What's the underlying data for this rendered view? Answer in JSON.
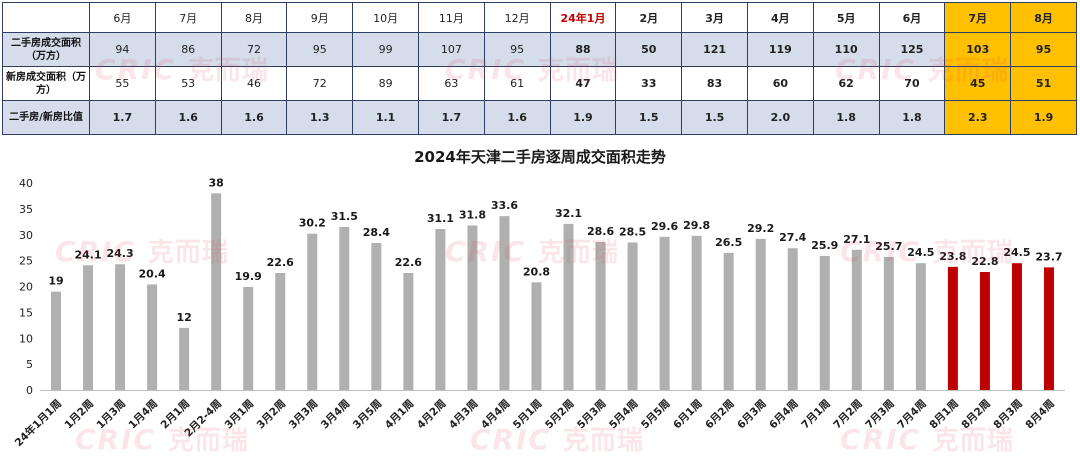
{
  "table": {
    "header": [
      "",
      "6月",
      "7月",
      "8月",
      "9月",
      "10月",
      "11月",
      "12月",
      "24年1月",
      "2月",
      "3月",
      "4月",
      "5月",
      "6月",
      "7月",
      "8月"
    ],
    "rows": [
      {
        "label": "二手房成交面积（万方）",
        "values": [
          "94",
          "86",
          "72",
          "95",
          "99",
          "107",
          "95",
          "88",
          "50",
          "121",
          "119",
          "110",
          "125",
          "103",
          "95"
        ]
      },
      {
        "label": "新房成交面积（万方）",
        "values": [
          "55",
          "53",
          "46",
          "72",
          "89",
          "63",
          "61",
          "47",
          "33",
          "83",
          "60",
          "62",
          "70",
          "45",
          "51"
        ]
      },
      {
        "label": "二手房/新房比值",
        "values": [
          "1.7",
          "1.6",
          "1.6",
          "1.3",
          "1.1",
          "1.7",
          "1.6",
          "1.9",
          "1.5",
          "1.5",
          "2.0",
          "1.8",
          "1.8",
          "2.3",
          "1.9"
        ]
      }
    ],
    "highlight_color": "#ffc000",
    "accent_color": "#c00000"
  },
  "watermark": {
    "latin": "CRIC",
    "cn": "克而瑞"
  },
  "chart_data": {
    "type": "bar",
    "title": "2024年天津二手房逐周成交面积走势",
    "xlabel": "",
    "ylabel": "",
    "ylim": [
      0,
      40
    ],
    "yticks": [
      0,
      5,
      10,
      15,
      20,
      25,
      30,
      35,
      40
    ],
    "grid": false,
    "categories": [
      "24年1月1周",
      "1月2周",
      "1月3周",
      "1月4周",
      "2月1周",
      "2月2-4周",
      "3月1周",
      "3月2周",
      "3月3周",
      "3月4周",
      "3月5周",
      "4月1周",
      "4月2周",
      "4月3周",
      "4月4周",
      "5月1周",
      "5月2周",
      "5月3周",
      "5月4周",
      "5月5周",
      "6月1周",
      "6月2周",
      "6月3周",
      "6月4周",
      "7月1周",
      "7月2周",
      "7月3周",
      "7月4周",
      "8月1周",
      "8月2周",
      "8月3周",
      "8月4周"
    ],
    "values": [
      19,
      24.1,
      24.3,
      20.4,
      12,
      38,
      19.9,
      22.6,
      30.2,
      31.5,
      28.4,
      22.6,
      31.1,
      31.8,
      33.6,
      20.8,
      32.1,
      28.6,
      28.5,
      29.6,
      29.8,
      26.5,
      29.2,
      27.4,
      25.9,
      27.1,
      25.7,
      24.5,
      23.8,
      22.8,
      24.5,
      23.7
    ],
    "colors": {
      "default": "#b0b0b0",
      "highlight": "#c00000"
    },
    "highlight_from_index": 28
  }
}
